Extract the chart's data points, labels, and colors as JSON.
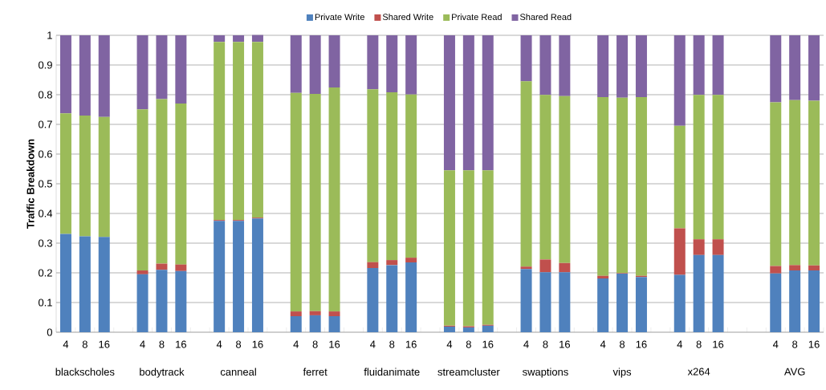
{
  "chart_data": {
    "type": "bar",
    "stacked": true,
    "categories": [
      "4",
      "8",
      "16",
      null,
      "4",
      "8",
      "16",
      null,
      "4",
      "8",
      "16",
      null,
      "4",
      "8",
      "16",
      null,
      "4",
      "8",
      "16",
      null,
      "4",
      "8",
      "16",
      null,
      "4",
      "8",
      "16",
      null,
      "4",
      "8",
      "16",
      null,
      "4",
      "8",
      "16",
      null,
      null,
      "4",
      "8",
      "16"
    ],
    "series": [
      {
        "name": "Private Write",
        "color": "#4f81bd",
        "values": [
          0.331,
          0.323,
          0.321,
          null,
          0.195,
          0.21,
          0.206,
          null,
          0.375,
          0.375,
          0.383,
          null,
          0.054,
          0.057,
          0.054,
          null,
          0.216,
          0.226,
          0.235,
          null,
          0.019,
          0.016,
          0.022,
          null,
          0.213,
          0.202,
          0.202,
          null,
          0.181,
          0.197,
          0.186,
          null,
          0.193,
          0.26,
          0.26,
          null,
          null,
          0.198,
          0.208,
          0.208
        ]
      },
      {
        "name": "Shared Write",
        "color": "#c0504d",
        "values": [
          0,
          0,
          0,
          null,
          0.013,
          0.021,
          0.022,
          null,
          0.003,
          0.003,
          0.003,
          null,
          0.016,
          0.014,
          0.016,
          null,
          0.02,
          0.017,
          0.016,
          null,
          0.003,
          0.004,
          0.003,
          null,
          0.008,
          0.043,
          0.031,
          null,
          0.009,
          0.002,
          0.004,
          null,
          0.157,
          0.053,
          0.053,
          null,
          null,
          0.025,
          0.018,
          0.017
        ]
      },
      {
        "name": "Private Read",
        "color": "#9bbb59",
        "values": [
          0.406,
          0.407,
          0.404,
          null,
          0.543,
          0.554,
          0.542,
          null,
          0.6,
          0.6,
          0.592,
          null,
          0.736,
          0.732,
          0.754,
          null,
          0.582,
          0.565,
          0.55,
          null,
          0.523,
          0.525,
          0.52,
          null,
          0.624,
          0.554,
          0.562,
          null,
          0.602,
          0.591,
          0.602,
          null,
          0.345,
          0.486,
          0.486,
          null,
          null,
          0.551,
          0.556,
          0.555
        ]
      },
      {
        "name": "Shared Read",
        "color": "#8064a2",
        "values": [
          0.263,
          0.27,
          0.275,
          null,
          0.249,
          0.215,
          0.23,
          null,
          0.022,
          0.022,
          0.023,
          null,
          0.194,
          0.197,
          0.176,
          null,
          0.182,
          0.192,
          0.199,
          null,
          0.455,
          0.455,
          0.455,
          null,
          0.155,
          0.201,
          0.205,
          null,
          0.208,
          0.21,
          0.208,
          null,
          0.305,
          0.201,
          0.201,
          null,
          null,
          0.226,
          0.218,
          0.22
        ]
      }
    ],
    "ylabel": "Traffic Breakdown",
    "ylim": [
      0,
      1
    ],
    "yticks": [
      0,
      0.1,
      0.2,
      0.3,
      0.4,
      0.5,
      0.6,
      0.7,
      0.8,
      0.9,
      1
    ],
    "grid": "y",
    "legend": "top",
    "annotations": [
      "blackscholes",
      "bodytrack",
      "canneal",
      "ferret",
      "fluidanimate",
      "streamcluster",
      "swaptions",
      "vips",
      "x264",
      "AVG"
    ]
  }
}
